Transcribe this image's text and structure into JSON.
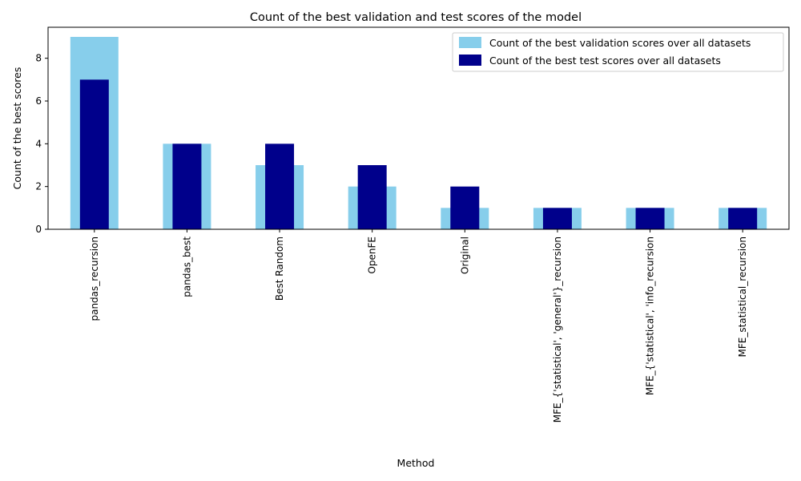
{
  "chart_data": {
    "type": "bar",
    "title": "Count of the best validation and test scores of the model",
    "xlabel": "Method",
    "ylabel": "Count of the best scores",
    "categories": [
      "pandas_recursion",
      "pandas_best",
      "Best Random",
      "OpenFE",
      "Original",
      "MFE_{'statistical', 'general'}_recursion",
      "MFE_{'statistical', 'info_recursion",
      "MFE_statistical_recursion"
    ],
    "series": [
      {
        "name": "Count of the best validation scores over all datasets",
        "color": "#87ceeb",
        "values": [
          9,
          4,
          3,
          2,
          1,
          1,
          1,
          1
        ]
      },
      {
        "name": "Count of the best test scores over all datasets",
        "color": "#00008b",
        "values": [
          7,
          4,
          4,
          3,
          2,
          1,
          1,
          1
        ]
      }
    ],
    "yticks": [
      0,
      2,
      4,
      6,
      8
    ],
    "ylim": [
      0,
      9.45
    ],
    "grid": false,
    "legend_position": "top-right"
  }
}
